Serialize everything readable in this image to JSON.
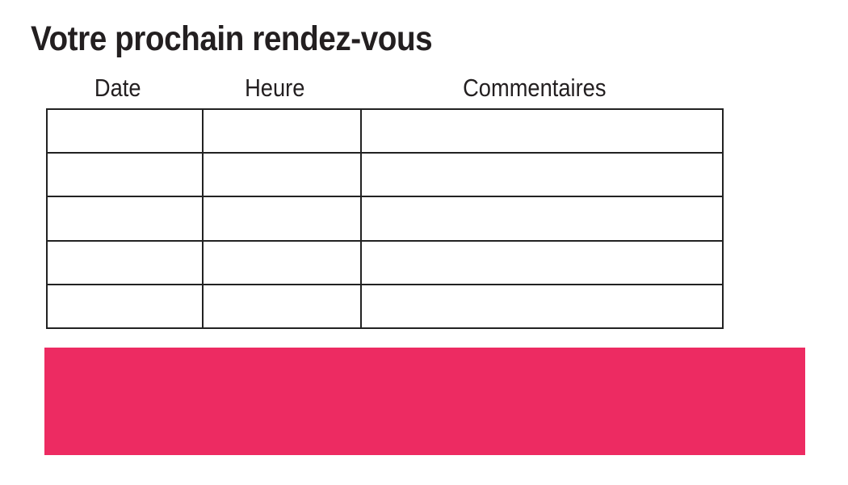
{
  "page": {
    "title": "Votre prochain rendez-vous"
  },
  "table": {
    "columns": [
      {
        "label": "Date"
      },
      {
        "label": "Heure"
      },
      {
        "label": "Commentaires"
      }
    ],
    "rows": [
      [
        "",
        "",
        ""
      ],
      [
        "",
        "",
        ""
      ],
      [
        "",
        "",
        ""
      ],
      [
        "",
        "",
        ""
      ],
      [
        "",
        "",
        ""
      ]
    ]
  },
  "colors": {
    "accent": "#ED2B62",
    "text": "#231F20",
    "border": "#222222"
  }
}
